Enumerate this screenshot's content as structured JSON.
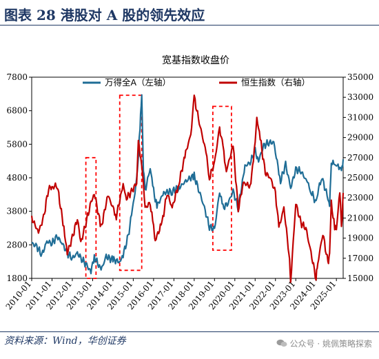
{
  "figure": {
    "title": "图表  28    港股对 A 股的领先效应",
    "source": "资料来源：Wind，华创证券",
    "watermark": "公众号 · 姚佩策略探索"
  },
  "colors": {
    "wind_a": "#1f6d96",
    "hsi": "#c00000",
    "box": "#ff0000"
  },
  "chart_data": {
    "type": "line",
    "title": "宽基指数收盘价",
    "x_ticks": [
      "2010-01",
      "2011-01",
      "2012-01",
      "2013-01",
      "2014-01",
      "2015-01",
      "2016-01",
      "2017-01",
      "2018-01",
      "2019-01",
      "2020-01",
      "2021-01",
      "2022-01",
      "2023-01",
      "2024-01",
      "2025-01"
    ],
    "left_axis": {
      "ylim": [
        1800,
        7800
      ],
      "ticks": [
        "1800",
        "2800",
        "3800",
        "4800",
        "5800",
        "6800",
        "7800"
      ]
    },
    "right_axis": {
      "ylim": [
        15000,
        35000
      ],
      "ticks": [
        "15000",
        "17000",
        "19000",
        "21000",
        "23000",
        "25000",
        "27000",
        "29000",
        "31000",
        "33000",
        "35000"
      ]
    },
    "legend_position": "top-center",
    "series": [
      {
        "name": "万得全A（左轴）",
        "axis": "left",
        "color": "#1f6d96",
        "points": [
          [
            "2010-01",
            2850
          ],
          [
            "2010-04",
            2750
          ],
          [
            "2010-07",
            2500
          ],
          [
            "2010-10",
            2900
          ],
          [
            "2011-01",
            2850
          ],
          [
            "2011-04",
            3050
          ],
          [
            "2011-07",
            2850
          ],
          [
            "2011-10",
            2550
          ],
          [
            "2012-01",
            2400
          ],
          [
            "2012-04",
            2550
          ],
          [
            "2012-07",
            2350
          ],
          [
            "2012-10",
            2150
          ],
          [
            "2012-12",
            2000
          ],
          [
            "2013-02",
            2450
          ],
          [
            "2013-06",
            2050
          ],
          [
            "2013-09",
            2450
          ],
          [
            "2014-01",
            2350
          ],
          [
            "2014-05",
            2300
          ],
          [
            "2014-07",
            2500
          ],
          [
            "2014-10",
            3050
          ],
          [
            "2014-12",
            3700
          ],
          [
            "2015-03",
            4700
          ],
          [
            "2015-05",
            6300
          ],
          [
            "2015-06",
            7250
          ],
          [
            "2015-07",
            5100
          ],
          [
            "2015-08",
            4400
          ],
          [
            "2015-11",
            5100
          ],
          [
            "2016-01",
            4400
          ],
          [
            "2016-03",
            3950
          ],
          [
            "2016-07",
            4350
          ],
          [
            "2016-12",
            4400
          ],
          [
            "2017-04",
            4500
          ],
          [
            "2017-09",
            4750
          ],
          [
            "2018-01",
            4850
          ],
          [
            "2018-04",
            4400
          ],
          [
            "2018-07",
            3900
          ],
          [
            "2018-10",
            3350
          ],
          [
            "2019-01",
            3250
          ],
          [
            "2019-04",
            4400
          ],
          [
            "2019-06",
            3900
          ],
          [
            "2019-09",
            4050
          ],
          [
            "2019-12",
            4400
          ],
          [
            "2020-03",
            3900
          ],
          [
            "2020-07",
            5150
          ],
          [
            "2020-10",
            5250
          ],
          [
            "2021-01",
            5600
          ],
          [
            "2021-03",
            5300
          ],
          [
            "2021-06",
            5750
          ],
          [
            "2021-09",
            5850
          ],
          [
            "2021-12",
            5850
          ],
          [
            "2022-04",
            4700
          ],
          [
            "2022-07",
            5200
          ],
          [
            "2022-10",
            4500
          ],
          [
            "2023-01",
            5050
          ],
          [
            "2023-04",
            5000
          ],
          [
            "2023-08",
            4650
          ],
          [
            "2023-10",
            4400
          ],
          [
            "2024-01",
            4050
          ],
          [
            "2024-03",
            4650
          ],
          [
            "2024-05",
            4700
          ],
          [
            "2024-08",
            4200
          ],
          [
            "2024-09",
            3950
          ],
          [
            "2024-10",
            5300
          ],
          [
            "2024-12",
            5150
          ],
          [
            "2025-02",
            5200
          ],
          [
            "2025-04",
            4950
          ],
          [
            "2025-05",
            5350
          ]
        ]
      },
      {
        "name": "恒生指数（右轴）",
        "axis": "right",
        "color": "#c00000",
        "points": [
          [
            "2010-01",
            21000
          ],
          [
            "2010-05",
            19600
          ],
          [
            "2010-08",
            21000
          ],
          [
            "2010-11",
            24000
          ],
          [
            "2011-01",
            24000
          ],
          [
            "2011-04",
            24300
          ],
          [
            "2011-08",
            20000
          ],
          [
            "2011-10",
            17500
          ],
          [
            "2012-01",
            19000
          ],
          [
            "2012-04",
            21000
          ],
          [
            "2012-06",
            18500
          ],
          [
            "2012-09",
            20500
          ],
          [
            "2012-12",
            22500
          ],
          [
            "2013-02",
            23500
          ],
          [
            "2013-06",
            20000
          ],
          [
            "2013-10",
            23300
          ],
          [
            "2014-01",
            22000
          ],
          [
            "2014-03",
            21200
          ],
          [
            "2014-07",
            24300
          ],
          [
            "2014-09",
            23000
          ],
          [
            "2014-12",
            23600
          ],
          [
            "2015-03",
            24500
          ],
          [
            "2015-04",
            28500
          ],
          [
            "2015-06",
            26500
          ],
          [
            "2015-08",
            22000
          ],
          [
            "2015-11",
            22500
          ],
          [
            "2016-01",
            20000
          ],
          [
            "2016-02",
            18800
          ],
          [
            "2016-06",
            20500
          ],
          [
            "2016-09",
            23500
          ],
          [
            "2016-12",
            22000
          ],
          [
            "2017-04",
            24500
          ],
          [
            "2017-08",
            27500
          ],
          [
            "2017-11",
            29300
          ],
          [
            "2018-01",
            33000
          ],
          [
            "2018-04",
            30500
          ],
          [
            "2018-08",
            27500
          ],
          [
            "2018-10",
            25000
          ],
          [
            "2019-01",
            26500
          ],
          [
            "2019-04",
            30000
          ],
          [
            "2019-06",
            28000
          ],
          [
            "2019-08",
            25700
          ],
          [
            "2019-12",
            28200
          ],
          [
            "2020-03",
            21800
          ],
          [
            "2020-06",
            24500
          ],
          [
            "2020-10",
            24200
          ],
          [
            "2020-12",
            26500
          ],
          [
            "2021-02",
            31000
          ],
          [
            "2021-04",
            28900
          ],
          [
            "2021-07",
            25500
          ],
          [
            "2021-10",
            25000
          ],
          [
            "2022-01",
            23500
          ],
          [
            "2022-03",
            20000
          ],
          [
            "2022-06",
            22000
          ],
          [
            "2022-09",
            17500
          ],
          [
            "2022-10",
            14700
          ],
          [
            "2023-01",
            22500
          ],
          [
            "2023-04",
            20500
          ],
          [
            "2023-07",
            20000
          ],
          [
            "2023-10",
            17500
          ],
          [
            "2024-01",
            15000
          ],
          [
            "2024-02",
            16500
          ],
          [
            "2024-05",
            19500
          ],
          [
            "2024-08",
            16500
          ],
          [
            "2024-09",
            17500
          ],
          [
            "2024-10",
            22500
          ],
          [
            "2024-12",
            20000
          ],
          [
            "2025-01",
            19800
          ],
          [
            "2025-03",
            23800
          ],
          [
            "2025-04",
            20000
          ],
          [
            "2025-05",
            23500
          ]
        ]
      }
    ],
    "highlight_boxes": [
      {
        "x": [
          "2012-09",
          "2013-03"
        ],
        "y_right": [
          15000,
          27000
        ]
      },
      {
        "x": [
          "2014-05",
          "2015-06"
        ],
        "y_right": [
          15800,
          33200
        ]
      },
      {
        "x": [
          "2018-12",
          "2019-11"
        ],
        "y_right": [
          17800,
          32100
        ]
      }
    ]
  }
}
